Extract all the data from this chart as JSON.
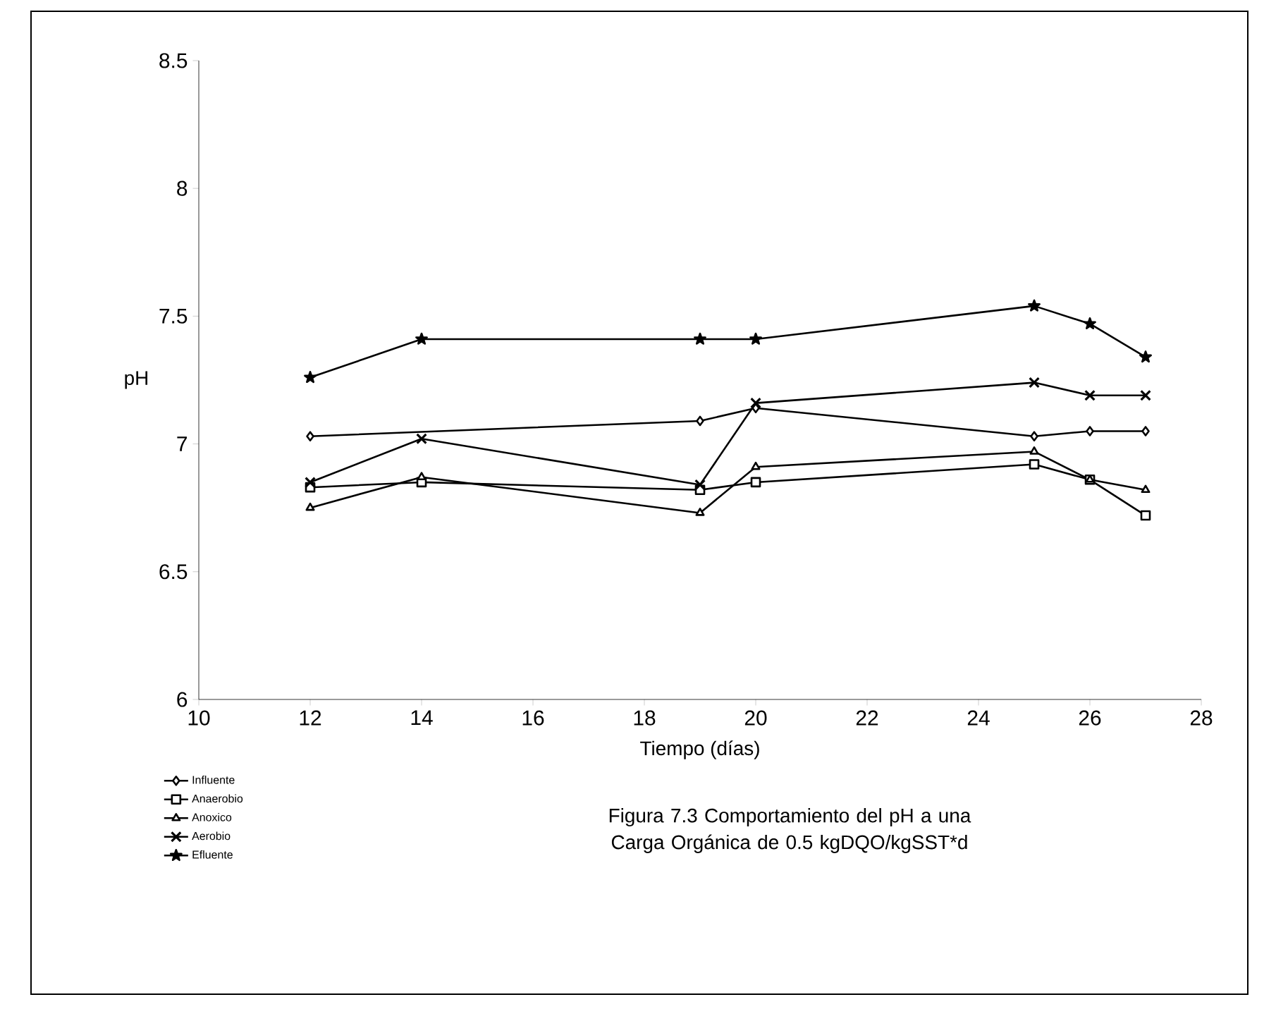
{
  "chart_data": {
    "type": "line",
    "xlabel": "Tiempo (días)",
    "ylabel": "pH",
    "annotations": [
      "Figura 7.3 Comportamiento del pH a una Carga Orgánica de 0.5 kgDQO/kgSST*d"
    ],
    "x": [
      12,
      14,
      19,
      20,
      25,
      26,
      27
    ],
    "series": [
      {
        "name": "Influente",
        "color": "#000000",
        "marker": "diamond",
        "values": [
          7.03,
          null,
          7.09,
          7.14,
          7.03,
          7.05,
          7.05
        ]
      },
      {
        "name": "Anaerobio",
        "color": "#000000",
        "marker": "square",
        "values": [
          6.83,
          6.85,
          6.82,
          6.85,
          6.92,
          6.86,
          6.72
        ]
      },
      {
        "name": "Anoxico",
        "color": "#000000",
        "marker": "triangle",
        "values": [
          6.75,
          6.87,
          6.73,
          6.91,
          6.97,
          6.86,
          6.82
        ]
      },
      {
        "name": "Aerobio",
        "color": "#000000",
        "marker": "cross",
        "values": [
          6.85,
          7.02,
          6.84,
          7.16,
          7.24,
          7.19,
          7.19
        ]
      },
      {
        "name": "Efluente",
        "color": "#000000",
        "marker": "star",
        "values": [
          7.26,
          7.41,
          7.41,
          7.41,
          7.54,
          7.47,
          7.34
        ]
      }
    ],
    "xlim": [
      10,
      28
    ],
    "ylim": [
      6,
      8.5
    ],
    "xticks": [
      10,
      12,
      14,
      16,
      18,
      20,
      22,
      24,
      26,
      28
    ],
    "yticks": [
      6,
      6.5,
      7,
      7.5,
      8,
      8.5
    ],
    "grid": false,
    "legend": "bottom left",
    "line_style": "solid"
  }
}
